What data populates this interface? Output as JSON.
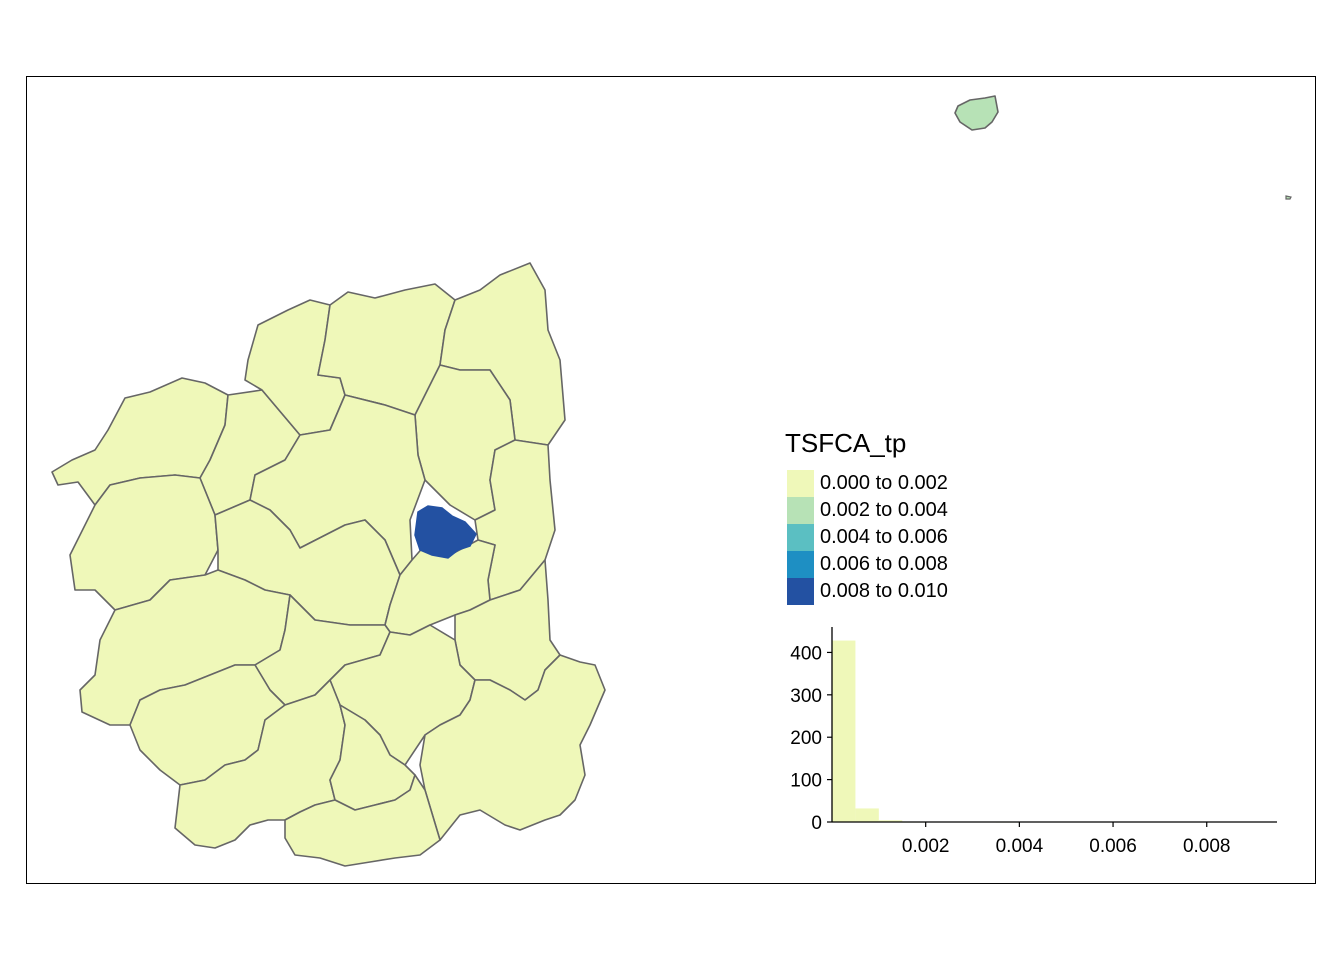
{
  "legend": {
    "title": "TSFCA_tp",
    "classes": [
      {
        "label": "0.000 to 0.002",
        "color": "#EFF8B9"
      },
      {
        "label": "0.002 to 0.004",
        "color": "#B7E2B6"
      },
      {
        "label": "0.004 to 0.006",
        "color": "#5BBFC2"
      },
      {
        "label": "0.006 to 0.008",
        "color": "#1E8FC3"
      },
      {
        "label": "0.008 to 0.010",
        "color": "#2351A2"
      }
    ]
  },
  "histogram": {
    "x_ticks": [
      "0.002",
      "0.004",
      "0.006",
      "0.008"
    ],
    "y_ticks": [
      "0",
      "100",
      "200",
      "300",
      "400"
    ],
    "bins": [
      {
        "start": 0.0,
        "end": 0.0005,
        "count": 428
      },
      {
        "start": 0.0005,
        "end": 0.001,
        "count": 32
      },
      {
        "start": 0.001,
        "end": 0.0015,
        "count": 4
      },
      {
        "start": 0.0015,
        "end": 0.002,
        "count": 1
      },
      {
        "start": 0.0035,
        "end": 0.004,
        "count": 1
      }
    ],
    "xlim": [
      0.0,
      0.0095
    ],
    "ylim": [
      0,
      460
    ]
  },
  "map": {
    "highlight_color": "#2351A2",
    "base_color": "#EFF8B9",
    "island_color": "#B7E2B6",
    "border_color": "#666666"
  }
}
